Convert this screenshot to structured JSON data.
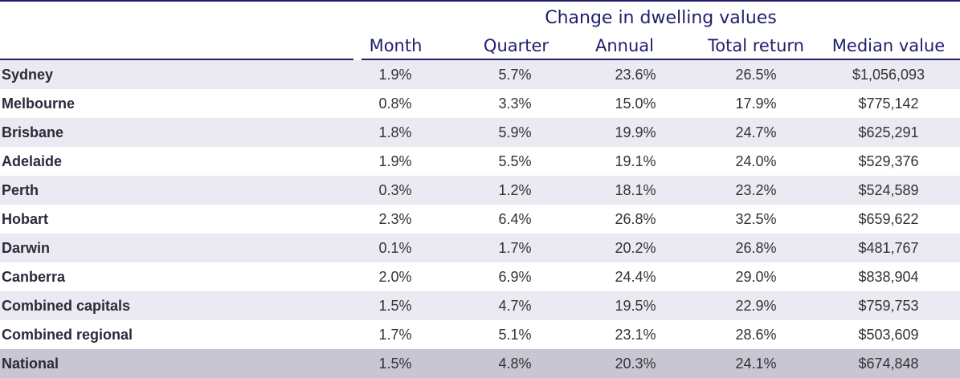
{
  "chart_data": {
    "type": "table",
    "group_header": "Change in dwelling values",
    "columns": [
      "Month",
      "Quarter",
      "Annual",
      "Total return",
      "Median value"
    ],
    "rows": [
      {
        "label": "Sydney",
        "values": [
          "1.9%",
          "5.7%",
          "23.6%",
          "26.5%",
          "$1,056,093"
        ]
      },
      {
        "label": "Melbourne",
        "values": [
          "0.8%",
          "3.3%",
          "15.0%",
          "17.9%",
          "$775,142"
        ]
      },
      {
        "label": "Brisbane",
        "values": [
          "1.8%",
          "5.9%",
          "19.9%",
          "24.7%",
          "$625,291"
        ]
      },
      {
        "label": "Adelaide",
        "values": [
          "1.9%",
          "5.5%",
          "19.1%",
          "24.0%",
          "$529,376"
        ]
      },
      {
        "label": "Perth",
        "values": [
          "0.3%",
          "1.2%",
          "18.1%",
          "23.2%",
          "$524,589"
        ]
      },
      {
        "label": "Hobart",
        "values": [
          "2.3%",
          "6.4%",
          "26.8%",
          "32.5%",
          "$659,622"
        ]
      },
      {
        "label": "Darwin",
        "values": [
          "0.1%",
          "1.7%",
          "20.2%",
          "26.8%",
          "$481,767"
        ]
      },
      {
        "label": "Canberra",
        "values": [
          "2.0%",
          "6.9%",
          "24.4%",
          "29.0%",
          "$838,904"
        ]
      },
      {
        "label": "Combined capitals",
        "values": [
          "1.5%",
          "4.7%",
          "19.5%",
          "22.9%",
          "$759,753"
        ]
      },
      {
        "label": "Combined regional",
        "values": [
          "1.7%",
          "5.1%",
          "23.1%",
          "28.6%",
          "$503,609"
        ]
      },
      {
        "label": "National",
        "values": [
          "1.5%",
          "4.8%",
          "20.3%",
          "24.1%",
          "$674,848"
        ]
      }
    ]
  },
  "colors": {
    "header_text": "#1f1f6b",
    "row_band": "#ebe9f1",
    "national_band": "#c9c6d4",
    "body_text": "#333333"
  }
}
